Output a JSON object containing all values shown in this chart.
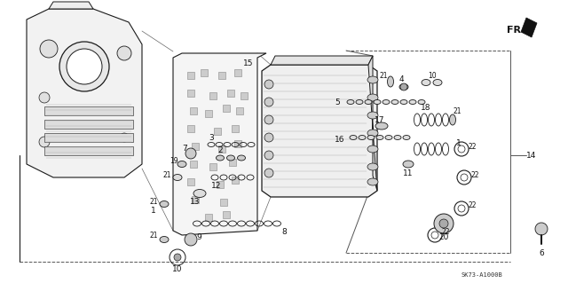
{
  "bg_color": "#ffffff",
  "fig_width": 6.4,
  "fig_height": 3.19,
  "dpi": 100,
  "diagram_code": "SK73-A1000B",
  "fr_label": "FR.",
  "line_color": "#1a1a1a",
  "text_color": "#111111",
  "fs": 6.5,
  "fs_small": 5.5,
  "fs_code": 5.0
}
